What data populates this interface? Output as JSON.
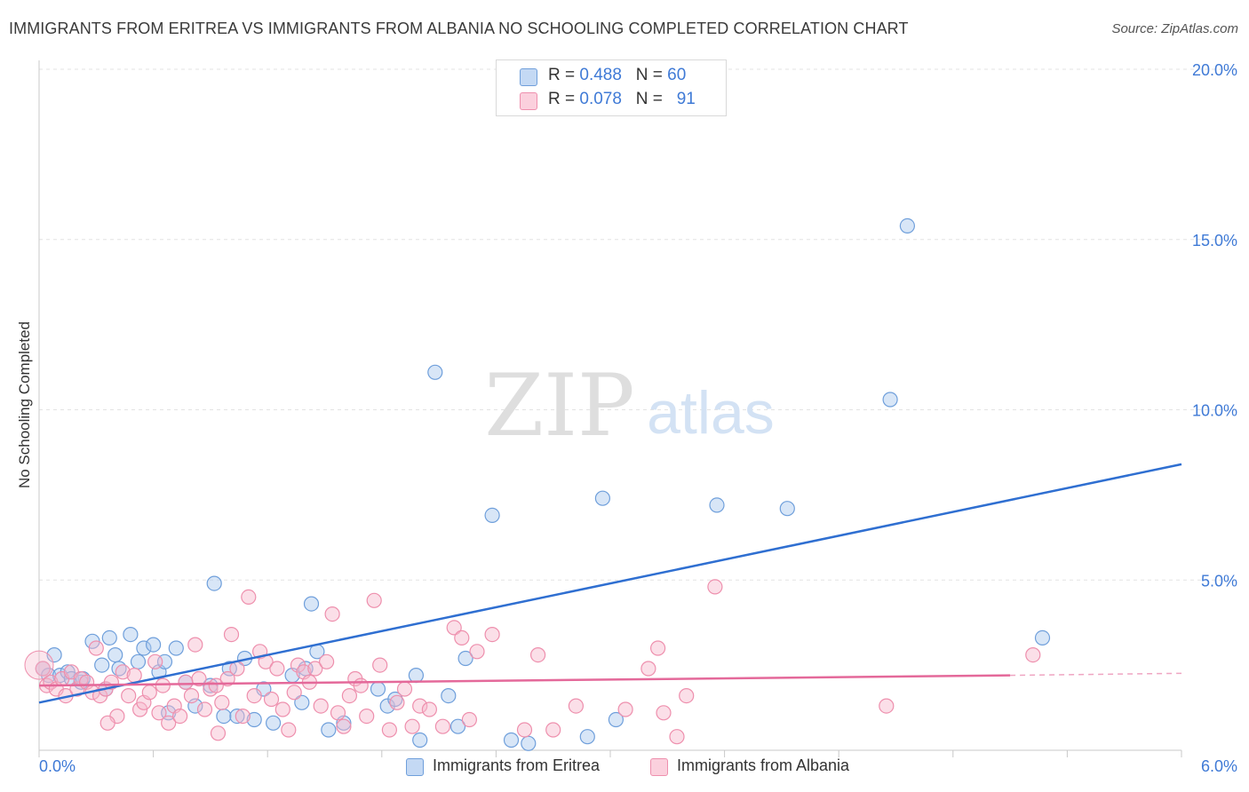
{
  "title": "IMMIGRANTS FROM ERITREA VS IMMIGRANTS FROM ALBANIA NO SCHOOLING COMPLETED CORRELATION CHART",
  "source": "Source: ZipAtlas.com",
  "legend": {
    "eritrea": {
      "r_label": "R = ",
      "r_value": "0.488",
      "n_label": "N = ",
      "n_value": "60"
    },
    "albania": {
      "r_label": "R = ",
      "r_value": "0.078",
      "n_label": "N = ",
      "n_value": "91"
    }
  },
  "colors": {
    "eritrea_fill": "#a9c7ee",
    "eritrea_stroke": "#6f9fdb",
    "eritrea_line": "#2f6fd1",
    "albania_fill": "#f6b8cb",
    "albania_stroke": "#ee8fad",
    "albania_line": "#e4699a",
    "tick_label": "#3f7ad6",
    "grid": "#e3e3e3"
  },
  "watermark": {
    "zip": "ZIP",
    "atlas": "atlas"
  },
  "chart_data": {
    "type": "scatter",
    "title": "IMMIGRANTS FROM ERITREA VS IMMIGRANTS FROM ALBANIA NO SCHOOLING COMPLETED CORRELATION CHART",
    "xlabel": "",
    "ylabel": "No Schooling Completed",
    "xlim": [
      0,
      6
    ],
    "ylim": [
      0,
      20
    ],
    "x_tick_labels": [
      "0.0%",
      "6.0%"
    ],
    "y_ticks": [
      5,
      10,
      15,
      20
    ],
    "y_tick_labels": [
      "5.0%",
      "10.0%",
      "15.0%",
      "20.0%"
    ],
    "grid": true,
    "legend_position": "top-center",
    "series": [
      {
        "name": "Immigrants from Eritrea",
        "key": "eritrea",
        "trend": {
          "x": [
            0,
            6
          ],
          "y": [
            1.4,
            8.4
          ]
        },
        "points": [
          [
            0.02,
            2.4
          ],
          [
            0.05,
            2.2
          ],
          [
            0.08,
            2.8
          ],
          [
            0.11,
            2.2
          ],
          [
            0.15,
            2.3
          ],
          [
            0.17,
            2.1
          ],
          [
            0.22,
            2.0
          ],
          [
            0.23,
            2.1
          ],
          [
            0.28,
            3.2
          ],
          [
            0.33,
            2.5
          ],
          [
            0.35,
            1.8
          ],
          [
            0.37,
            3.3
          ],
          [
            0.4,
            2.8
          ],
          [
            0.42,
            2.4
          ],
          [
            0.48,
            3.4
          ],
          [
            0.52,
            2.6
          ],
          [
            0.55,
            3.0
          ],
          [
            0.6,
            3.1
          ],
          [
            0.63,
            2.3
          ],
          [
            0.66,
            2.6
          ],
          [
            0.68,
            1.1
          ],
          [
            0.72,
            3.0
          ],
          [
            0.77,
            2.0
          ],
          [
            0.82,
            1.3
          ],
          [
            0.9,
            1.9
          ],
          [
            0.92,
            4.9
          ],
          [
            0.97,
            1.0
          ],
          [
            1.0,
            2.4
          ],
          [
            1.04,
            1.0
          ],
          [
            1.08,
            2.7
          ],
          [
            1.13,
            0.9
          ],
          [
            1.18,
            1.8
          ],
          [
            1.23,
            0.8
          ],
          [
            1.33,
            2.2
          ],
          [
            1.38,
            1.4
          ],
          [
            1.4,
            2.4
          ],
          [
            1.43,
            4.3
          ],
          [
            1.46,
            2.9
          ],
          [
            1.52,
            0.6
          ],
          [
            1.6,
            0.8
          ],
          [
            1.78,
            1.8
          ],
          [
            1.83,
            1.3
          ],
          [
            1.87,
            1.5
          ],
          [
            1.98,
            2.2
          ],
          [
            2.0,
            0.3
          ],
          [
            2.08,
            11.1
          ],
          [
            2.15,
            1.6
          ],
          [
            2.2,
            0.7
          ],
          [
            2.24,
            2.7
          ],
          [
            2.38,
            6.9
          ],
          [
            2.48,
            0.3
          ],
          [
            2.57,
            0.2
          ],
          [
            2.88,
            0.4
          ],
          [
            2.96,
            7.4
          ],
          [
            3.03,
            0.9
          ],
          [
            3.56,
            7.2
          ],
          [
            3.93,
            7.1
          ],
          [
            4.47,
            10.3
          ],
          [
            4.56,
            15.4
          ],
          [
            5.27,
            3.3
          ]
        ]
      },
      {
        "name": "Immigrants from Albania",
        "key": "albania",
        "trend": {
          "x": [
            0,
            5.1
          ],
          "y": [
            1.9,
            2.2
          ]
        },
        "trend_dashed": {
          "x": [
            5.1,
            6
          ],
          "y": [
            2.2,
            2.26
          ]
        },
        "points": [
          [
            0.02,
            2.4
          ],
          [
            0.04,
            1.9
          ],
          [
            0.06,
            2.0
          ],
          [
            0.09,
            1.8
          ],
          [
            0.12,
            2.1
          ],
          [
            0.14,
            1.6
          ],
          [
            0.17,
            2.3
          ],
          [
            0.2,
            1.8
          ],
          [
            0.22,
            2.1
          ],
          [
            0.25,
            2.0
          ],
          [
            0.28,
            1.7
          ],
          [
            0.3,
            3.0
          ],
          [
            0.32,
            1.6
          ],
          [
            0.35,
            1.8
          ],
          [
            0.38,
            2.0
          ],
          [
            0.41,
            1.0
          ],
          [
            0.44,
            2.3
          ],
          [
            0.47,
            1.6
          ],
          [
            0.5,
            2.2
          ],
          [
            0.53,
            1.2
          ],
          [
            0.55,
            1.4
          ],
          [
            0.58,
            1.7
          ],
          [
            0.61,
            2.6
          ],
          [
            0.63,
            1.1
          ],
          [
            0.65,
            1.9
          ],
          [
            0.68,
            0.8
          ],
          [
            0.71,
            1.3
          ],
          [
            0.74,
            1.0
          ],
          [
            0.77,
            2.0
          ],
          [
            0.8,
            1.6
          ],
          [
            0.82,
            3.1
          ],
          [
            0.84,
            2.1
          ],
          [
            0.87,
            1.2
          ],
          [
            0.9,
            1.8
          ],
          [
            0.93,
            1.9
          ],
          [
            0.96,
            1.4
          ],
          [
            0.99,
            2.1
          ],
          [
            1.01,
            3.4
          ],
          [
            1.04,
            2.4
          ],
          [
            1.07,
            1.0
          ],
          [
            1.1,
            4.5
          ],
          [
            1.13,
            1.6
          ],
          [
            1.16,
            2.9
          ],
          [
            1.19,
            2.6
          ],
          [
            1.22,
            1.5
          ],
          [
            1.25,
            2.4
          ],
          [
            1.28,
            1.2
          ],
          [
            1.31,
            0.6
          ],
          [
            1.34,
            1.7
          ],
          [
            1.36,
            2.5
          ],
          [
            1.39,
            2.3
          ],
          [
            1.42,
            2.0
          ],
          [
            1.45,
            2.4
          ],
          [
            1.48,
            1.3
          ],
          [
            1.51,
            2.6
          ],
          [
            1.54,
            4.0
          ],
          [
            1.57,
            1.1
          ],
          [
            1.6,
            0.7
          ],
          [
            1.63,
            1.6
          ],
          [
            1.66,
            2.1
          ],
          [
            1.69,
            1.9
          ],
          [
            1.72,
            1.0
          ],
          [
            1.76,
            4.4
          ],
          [
            1.79,
            2.5
          ],
          [
            1.84,
            0.6
          ],
          [
            1.88,
            1.4
          ],
          [
            1.92,
            1.8
          ],
          [
            1.96,
            0.7
          ],
          [
            2.0,
            1.3
          ],
          [
            2.05,
            1.2
          ],
          [
            2.12,
            0.7
          ],
          [
            2.18,
            3.6
          ],
          [
            2.22,
            3.3
          ],
          [
            2.26,
            0.9
          ],
          [
            2.3,
            2.9
          ],
          [
            2.38,
            3.4
          ],
          [
            2.55,
            0.6
          ],
          [
            2.62,
            2.8
          ],
          [
            2.7,
            0.6
          ],
          [
            2.82,
            1.3
          ],
          [
            3.08,
            1.2
          ],
          [
            3.2,
            2.4
          ],
          [
            3.25,
            3.0
          ],
          [
            3.28,
            1.1
          ],
          [
            3.35,
            0.4
          ],
          [
            3.4,
            1.6
          ],
          [
            3.55,
            4.8
          ],
          [
            4.45,
            1.3
          ],
          [
            5.22,
            2.8
          ],
          [
            0.36,
            0.8
          ],
          [
            0.94,
            0.5
          ]
        ]
      }
    ]
  },
  "bottom_legend": {
    "eritrea": "Immigrants from Eritrea",
    "albania": "Immigrants from Albania"
  }
}
